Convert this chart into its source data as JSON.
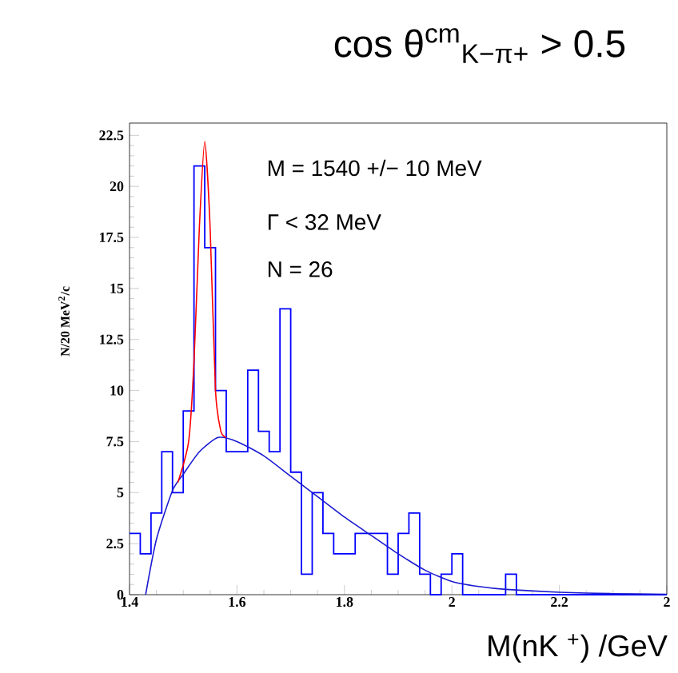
{
  "chart_data": {
    "type": "histogram",
    "title": "cos θ$^{cm}$$_{K−π+}$ > 0.5",
    "xlabel": "M(nK $^{+}$) /GeV",
    "ylabel": "N/20 MeV$^{2}$/c",
    "annotations": [
      "M = 1540 +/− 10 MeV",
      "Γ < 32 MeV",
      "N = 26"
    ],
    "xlim": [
      1.4,
      2.4
    ],
    "ylim": [
      0,
      23.1
    ],
    "xticks": [
      1.4,
      1.6,
      1.8,
      2,
      2.2,
      {
        "value": 2.4,
        "label": "2"
      }
    ],
    "yticks": [
      0,
      2.5,
      5,
      7.5,
      10,
      12.5,
      15,
      17.5,
      20,
      22.5
    ],
    "series": [
      {
        "color": "#0000ff",
        "bins": [
          1.4,
          1.42,
          1.44,
          1.46,
          1.48,
          1.5,
          1.52,
          1.54,
          1.56,
          1.58,
          1.6,
          1.62,
          1.64,
          1.66,
          1.68,
          1.7,
          1.72,
          1.74,
          1.76,
          1.78,
          1.8,
          1.82,
          1.84,
          1.86,
          1.88,
          1.9,
          1.92,
          1.94,
          1.96,
          1.98,
          2.0,
          2.02,
          2.04,
          2.06,
          2.08,
          2.1,
          2.12,
          2.14,
          2.16,
          2.18,
          2.2,
          2.22,
          2.24,
          2.26,
          2.28,
          2.3,
          2.32,
          2.34,
          2.36,
          2.38,
          2.4
        ],
        "values": [
          3,
          2,
          4,
          7,
          5,
          9,
          21,
          17,
          10,
          7,
          7,
          11,
          8,
          7,
          14,
          6,
          1,
          5,
          3,
          2,
          2,
          3,
          3,
          3,
          1,
          3,
          4,
          1,
          0,
          1,
          2,
          0,
          0,
          0,
          0,
          1,
          0,
          0,
          0,
          0,
          0,
          0,
          0,
          0,
          0,
          0,
          0,
          0,
          0,
          0
        ]
      },
      {
        "type": "line",
        "color": "#1a1ad0",
        "x": [
          1.43,
          1.45,
          1.48,
          1.5,
          1.53,
          1.565,
          1.6,
          1.65,
          1.7,
          1.75,
          1.8,
          1.85,
          1.9,
          1.95,
          2.0,
          2.05,
          2.1,
          2.2,
          2.3,
          2.4
        ],
        "values": [
          0,
          2.7,
          5.1,
          5.9,
          7.0,
          7.7,
          7.5,
          6.8,
          5.8,
          4.8,
          3.8,
          2.9,
          2.0,
          1.2,
          0.65,
          0.4,
          0.26,
          0.12,
          0.05,
          0.02
        ]
      },
      {
        "type": "line",
        "color": "#ff0000",
        "x": [
          1.49,
          1.51,
          1.52,
          1.53,
          1.54,
          1.55,
          1.56,
          1.57,
          1.58
        ],
        "values": [
          5.5,
          7.5,
          11.4,
          18,
          22.2,
          18,
          10,
          8,
          7.7
        ]
      }
    ]
  }
}
